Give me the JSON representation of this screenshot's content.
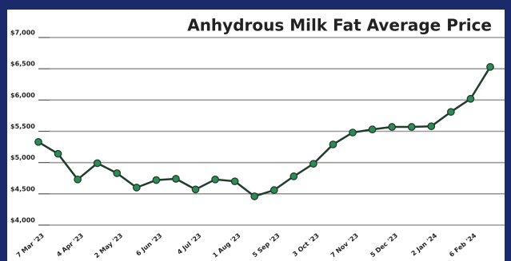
{
  "chart_data": {
    "type": "line",
    "title": "Anhydrous Milk Fat Average Price",
    "categories": [
      "7 Mar '23",
      null,
      "4 Apr '23",
      null,
      "2 May '23",
      null,
      "6 Jun '23",
      null,
      "4 Jul '23",
      null,
      "1 Aug '23",
      null,
      "5 Sep '23",
      null,
      "3 Oct '23",
      null,
      "7 Nov '23",
      null,
      "5 Dec '23",
      null,
      "2 Jan '24",
      null,
      "6 Feb '24",
      null
    ],
    "series": [
      {
        "name": "Anhydrous Milk Fat",
        "color": "#1f3d2b",
        "marker_color": "#2e8b57",
        "values": [
          5330,
          5140,
          4730,
          4990,
          4830,
          4600,
          4720,
          4740,
          4570,
          4730,
          4700,
          4460,
          4560,
          4780,
          4980,
          5290,
          5480,
          5530,
          5570,
          5570,
          5580,
          5810,
          6020,
          6530
        ]
      }
    ],
    "ylim": [
      4000,
      7000
    ],
    "yticks": [
      {
        "value": 4000,
        "label": "$4,000"
      },
      {
        "value": 4500,
        "label": "$4,500"
      },
      {
        "value": 5000,
        "label": "$5,000"
      },
      {
        "value": 5500,
        "label": "$5,500"
      },
      {
        "value": 6000,
        "label": "$6,000"
      },
      {
        "value": 6500,
        "label": "$6,500"
      },
      {
        "value": 7000,
        "label": "$7,000"
      }
    ],
    "grid": true
  }
}
